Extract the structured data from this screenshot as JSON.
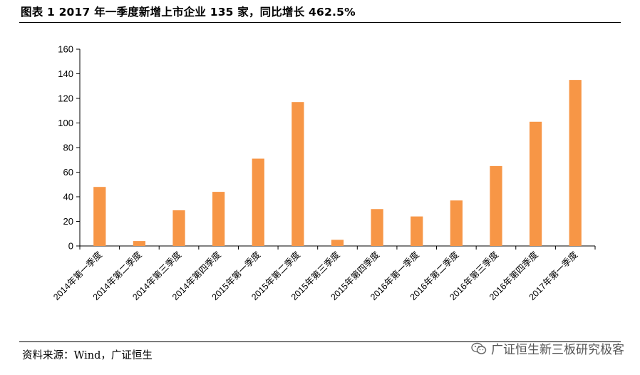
{
  "header": {
    "title": "图表 1 2017 年一季度新增上市企业 135 家，同比增长 462.5%"
  },
  "footer": {
    "source": "资料来源：Wind，广证恒生",
    "watermark": "广证恒生新三板研究极客",
    "watermark_icon": "wechat-icon"
  },
  "colors": {
    "bar": "#F79646",
    "axis": "#000000"
  },
  "chart_data": {
    "type": "bar",
    "title": "图表 1 2017 年一季度新增上市企业 135 家，同比增长 462.5%",
    "xlabel": "",
    "ylabel": "",
    "ylim": [
      0,
      160
    ],
    "yticks": [
      0,
      20,
      40,
      60,
      80,
      100,
      120,
      140,
      160
    ],
    "grid": false,
    "legend": "none",
    "categories": [
      "2014年第一季度",
      "2014年第二季度",
      "2014年第三季度",
      "2014年第四季度",
      "2015年第一季度",
      "2015年第二季度",
      "2015年第三季度",
      "2015年第四季度",
      "2016年第一季度",
      "2016年第二季度",
      "2016年第三季度",
      "2016年第四季度",
      "2017年第一季度"
    ],
    "values": [
      48,
      4,
      29,
      44,
      71,
      117,
      5,
      30,
      24,
      37,
      65,
      101,
      135
    ]
  }
}
